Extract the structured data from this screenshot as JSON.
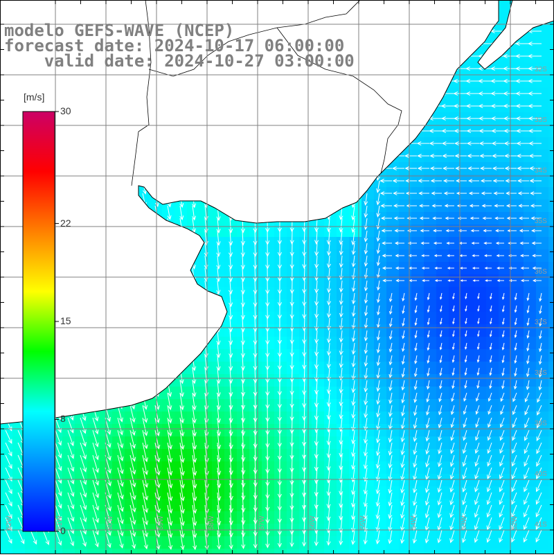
{
  "title": {
    "line1": "modelo GEFS-WAVE (NCEP)",
    "line2": "forecast date: 2024-10-17 06:00:00",
    "line3": "    valid date: 2024-10-27 03:00:00"
  },
  "colorbar": {
    "unit": "[m/s]",
    "ticks": [
      {
        "label": "30",
        "value": 30
      },
      {
        "label": "22",
        "value": 22
      },
      {
        "label": "15",
        "value": 15
      },
      {
        "label": "8",
        "value": 8
      },
      {
        "label": "0",
        "value": 0
      }
    ],
    "range": [
      0,
      30
    ],
    "colors": [
      "#0000ff",
      "#0080ff",
      "#00ffff",
      "#00ff00",
      "#ffff00",
      "#ff8000",
      "#ff0000",
      "#cc0066"
    ]
  },
  "map": {
    "lat_labels": [
      "32S",
      "33S",
      "34S",
      "35S",
      "36S",
      "37S",
      "38S",
      "39S",
      "40S",
      "41S"
    ],
    "lon_labels": [
      "62W",
      "61W",
      "60W",
      "59W",
      "58W",
      "57W",
      "56W",
      "55W",
      "54W",
      "53W",
      "52W"
    ],
    "grid_color": "#808080",
    "land_color": "#ffffff",
    "coast_color": "#000000",
    "arrow_color": "#ffffff"
  }
}
